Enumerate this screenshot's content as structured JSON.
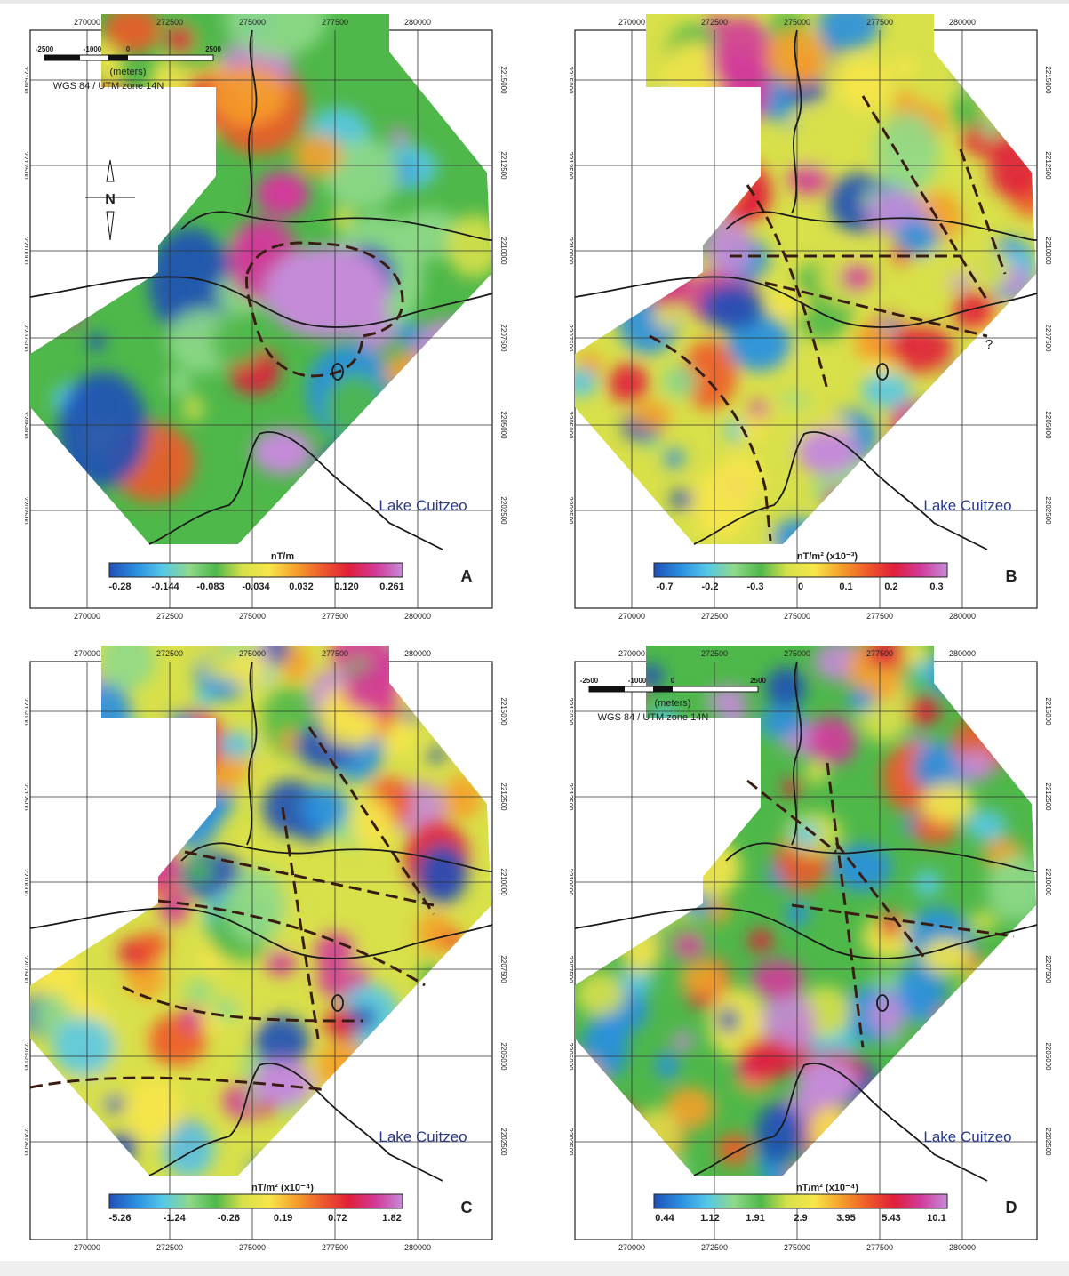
{
  "panels": [
    {
      "id": "A",
      "letter": "A",
      "x_ticks": [
        "270000",
        "272500",
        "275000",
        "277500",
        "280000"
      ],
      "y_ticks": [
        "2215000",
        "2212500",
        "2210000",
        "2207500",
        "2205000",
        "2202500"
      ],
      "lake_label": "Lake Cuitzeo",
      "unit": "nT/m",
      "colorbar_labels": [
        "-0.28",
        "-0.144",
        "-0.083",
        "-0.034",
        "0.032",
        "0.120",
        "0.261"
      ],
      "scale_bar": {
        "labels": [
          "-2500",
          "-1000",
          "0",
          "2500"
        ],
        "units": "(meters)",
        "crs": "WGS 84 / UTM zone 14N"
      },
      "north_arrow": "N"
    },
    {
      "id": "B",
      "letter": "B",
      "x_ticks": [
        "270000",
        "272500",
        "275000",
        "277500",
        "280000"
      ],
      "y_ticks": [
        "2215000",
        "2212500",
        "2210000",
        "2207500",
        "2205000",
        "2202500"
      ],
      "lake_label": "Lake Cuitzeo",
      "unit": "nT/m² (x10⁻³)",
      "colorbar_labels": [
        "-0.7",
        "-0.2",
        "-0.3",
        "0",
        "0.1",
        "0.2",
        "0.3"
      ],
      "question_mark": "?"
    },
    {
      "id": "C",
      "letter": "C",
      "x_ticks": [
        "270000",
        "272500",
        "275000",
        "277500",
        "280000"
      ],
      "y_ticks": [
        "2215000",
        "2212500",
        "2210000",
        "2207500",
        "2205000",
        "2202500"
      ],
      "lake_label": "Lake Cuitzeo",
      "unit": "nT/m² (x10⁻⁴)",
      "colorbar_labels": [
        "-5.26",
        "-1.24",
        "-0.26",
        "0.19",
        "0.72",
        "1.82"
      ]
    },
    {
      "id": "D",
      "letter": "D",
      "x_ticks": [
        "270000",
        "272500",
        "275000",
        "277500",
        "280000"
      ],
      "y_ticks": [
        "2215000",
        "2212500",
        "2210000",
        "2207500",
        "2205000",
        "2202500"
      ],
      "lake_label": "Lake Cuitzeo",
      "unit": "nT/m² (x10⁻⁴)",
      "colorbar_labels": [
        "0.44",
        "1.12",
        "1.91",
        "2.9",
        "3.95",
        "5.43",
        "10.1"
      ],
      "scale_bar": {
        "labels": [
          "-2500",
          "-1000",
          "0",
          "2500"
        ],
        "units": "(meters)",
        "crs": "WGS 84 / UTM zone 14N"
      }
    }
  ],
  "colors": {
    "ramp": [
      "#1f4fb8",
      "#2a8fe0",
      "#56c8e8",
      "#8fd98a",
      "#4fb84a",
      "#d8e04a",
      "#f7e64a",
      "#f5a02a",
      "#ee5a2a",
      "#e01f3a",
      "#d23a9a",
      "#c58bd8"
    ],
    "lake_label": "#2a3a8a"
  }
}
